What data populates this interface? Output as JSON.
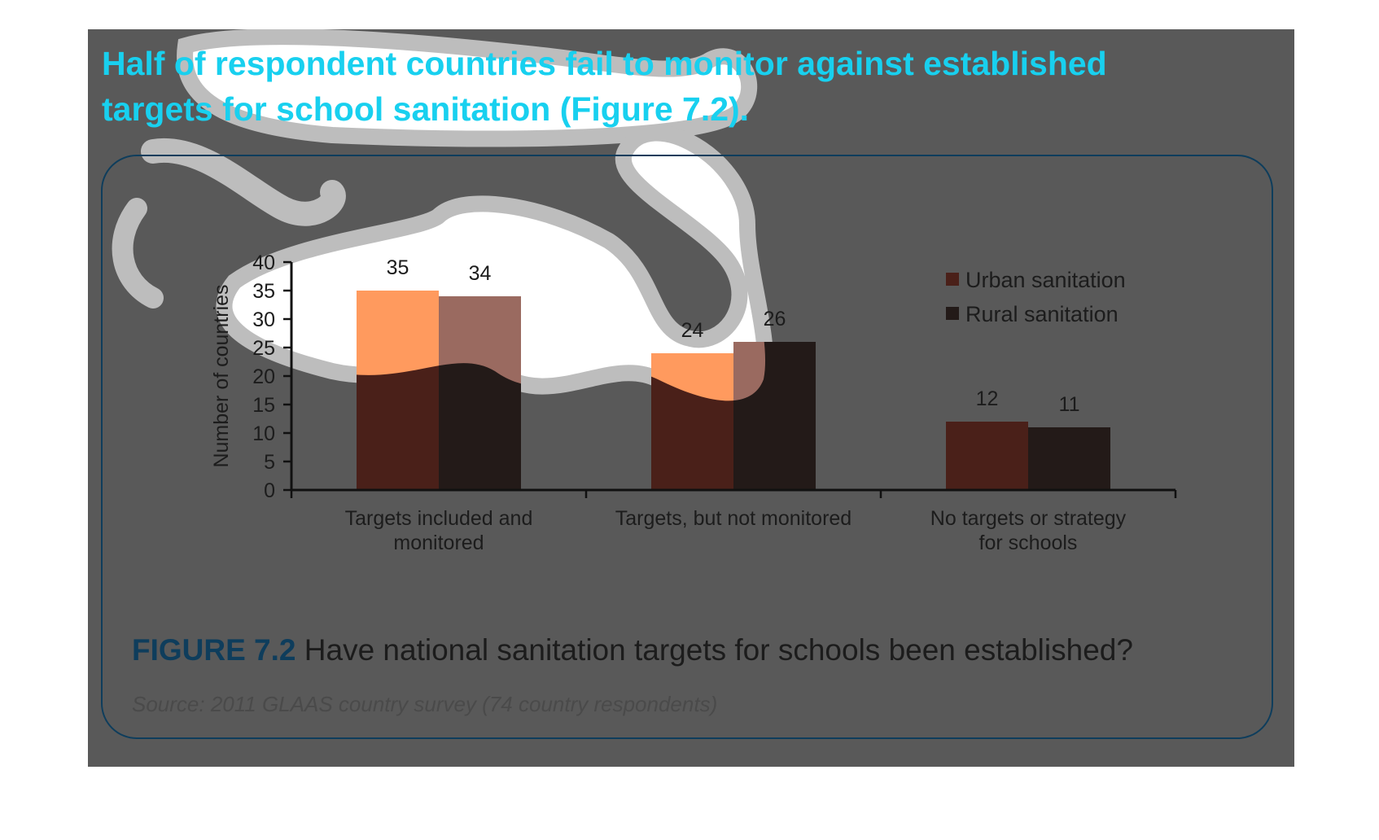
{
  "heading": {
    "part1": "Half of respondent countries fail to monitor against established",
    "part2": "targets for school sanitation (Figure 7.2)."
  },
  "caption": {
    "figure_number": "FIGURE 7.2",
    "text": "Have national sanitation targets for schools been established?"
  },
  "source": "Source: 2011 GLAAS country survey (74 country respondents)",
  "colors": {
    "panel_background": "#595959",
    "frame": "#0e3d5c",
    "heading_dark": "#0a3552",
    "heading_highlight": "#18d0ef",
    "urban_bar": "#4a2019",
    "rural_bar": "#231a18",
    "urban_bar_highlight": "#ff9a5e",
    "rural_bar_highlight": "#9a6a60"
  },
  "chart_data": {
    "type": "bar",
    "categories": [
      [
        "Targets included and",
        "monitored"
      ],
      [
        "Targets, but not monitored"
      ],
      [
        "No targets or strategy",
        "for schools"
      ]
    ],
    "series": [
      {
        "name": "Urban sanitation",
        "values": [
          35,
          24,
          12
        ]
      },
      {
        "name": "Rural sanitation",
        "values": [
          34,
          26,
          11
        ]
      }
    ],
    "ylabel": "Number of countries",
    "ylim": [
      0,
      40
    ],
    "yticks": [
      0,
      5,
      10,
      15,
      20,
      25,
      30,
      35,
      40
    ],
    "legend": "top-right",
    "data_labels": true,
    "grid": false
  }
}
